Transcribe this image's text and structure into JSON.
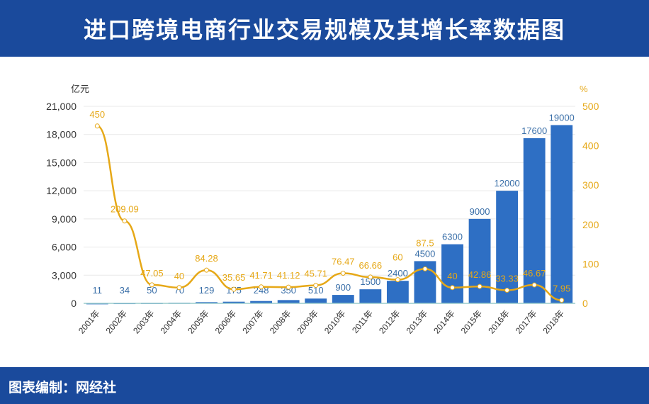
{
  "header": {
    "title": "进口跨境电商行业交易规模及其增长率数据图"
  },
  "footer": {
    "credit": "图表编制：网经社"
  },
  "chart_data": {
    "type": "bar+line",
    "title": "进口跨境电商行业交易规模及其增长率数据图",
    "categories": [
      "2001年",
      "2002年",
      "2003年",
      "2004年",
      "2005年",
      "2006年",
      "2007年",
      "2008年",
      "2009年",
      "2010年",
      "2011年",
      "2012年",
      "2013年",
      "2014年",
      "2015年",
      "2016年",
      "2017年",
      "2018年"
    ],
    "series": [
      {
        "type": "bar",
        "axis": "left",
        "values": [
          11,
          34,
          50,
          70,
          129,
          175,
          248,
          350,
          510,
          900,
          1500,
          2400,
          4500,
          6300,
          9000,
          12000,
          17600,
          19000
        ]
      },
      {
        "type": "line",
        "axis": "right",
        "values": [
          450,
          209.09,
          47.05,
          40,
          84.28,
          35.65,
          41.71,
          41.12,
          45.71,
          76.47,
          66.66,
          60,
          87.5,
          40,
          42.86,
          33.33,
          46.67,
          7.95
        ]
      }
    ],
    "ylabel_left": "亿元",
    "ylabel_right": "%",
    "ylim_left": [
      0,
      21000
    ],
    "yticks_left": [
      "0",
      "3,000",
      "6,000",
      "9,000",
      "12,000",
      "15,000",
      "18,000",
      "21,000"
    ],
    "ylim_right": [
      0,
      500
    ],
    "yticks_right": [
      "0",
      "100",
      "200",
      "300",
      "400",
      "500"
    ],
    "grid": true,
    "colors": {
      "bar": "#2e6fc4",
      "line": "#e6a817",
      "bar_label": "#3a6fa8",
      "line_label": "#e6a817"
    }
  }
}
